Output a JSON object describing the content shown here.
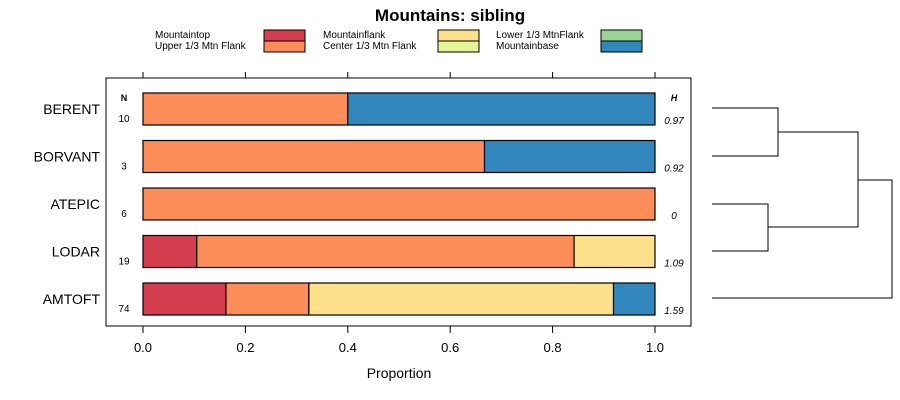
{
  "chart_data": {
    "type": "bar",
    "orientation": "horizontal",
    "stacked": true,
    "title": "Mountains: sibling",
    "xlabel": "Proportion",
    "xlim": [
      0,
      1
    ],
    "xticks": [
      "0.0",
      "0.2",
      "0.4",
      "0.6",
      "0.8",
      "1.0"
    ],
    "xtick_values": [
      0,
      0.2,
      0.4,
      0.6,
      0.8,
      1.0
    ],
    "n_header": "N",
    "h_header": "H",
    "categories": [
      "BERENT",
      "BORVANT",
      "ATEPIC",
      "LODAR",
      "AMTOFT"
    ],
    "n": [
      "10",
      "3",
      "6",
      "19",
      "74"
    ],
    "h": [
      "0.97",
      "0.92",
      "0",
      "1.09",
      "1.59"
    ],
    "series": [
      {
        "name": "Mountaintop",
        "color": "#d53e4f",
        "values": [
          0,
          0,
          0,
          0.105,
          0.162
        ]
      },
      {
        "name": "Upper 1/3 Mtn Flank",
        "color": "#fc8d59",
        "values": [
          0.4,
          0.667,
          1.0,
          0.737,
          0.162
        ]
      },
      {
        "name": "Mountainflank",
        "color": "#fee08b",
        "values": [
          0,
          0,
          0,
          0.158,
          0.595
        ]
      },
      {
        "name": "Center 1/3 Mtn Flank",
        "color": "#e6f598",
        "values": [
          0,
          0,
          0,
          0,
          0
        ]
      },
      {
        "name": "Lower 1/3 MtnFlank",
        "color": "#99d594",
        "values": [
          0,
          0,
          0,
          0,
          0
        ]
      },
      {
        "name": "Mountainbase",
        "color": "#3288bd",
        "values": [
          0.6,
          0.333,
          0,
          0,
          0.081
        ]
      }
    ],
    "legend_position": "top",
    "dendrogram": true
  }
}
